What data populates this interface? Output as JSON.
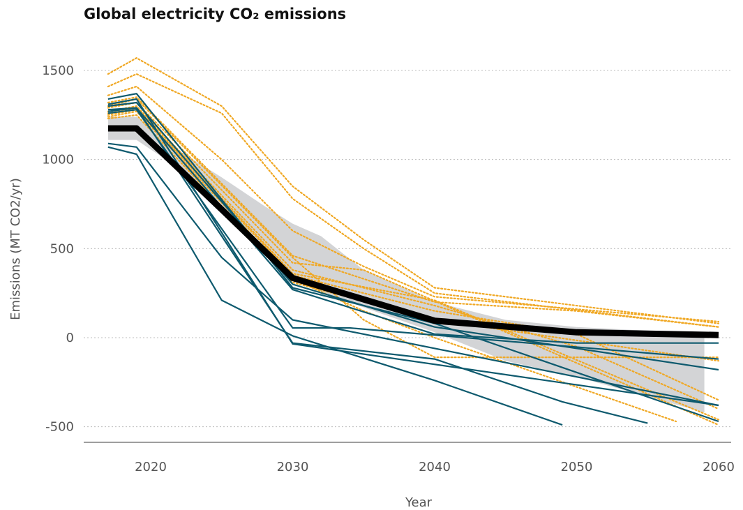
{
  "chart_data": {
    "type": "line",
    "title": "Global electricity CO₂ emissions",
    "xlabel": "Year",
    "ylabel": "Emissions (MT CO2/yr)",
    "xlim": [
      2014,
      2062
    ],
    "ylim": [
      -600,
      1600
    ],
    "xticks": [
      2020,
      2030,
      2040,
      2050,
      2060
    ],
    "yticks": [
      -500,
      0,
      500,
      1000,
      1500
    ],
    "ytick_labels": [
      "-500",
      "0",
      "500",
      "1000",
      "1500"
    ],
    "grid": "horizontal dotted",
    "colors": {
      "scenario_solid": "#0e5a6e",
      "scenario_dotted": "#f0a824",
      "median": "#000000",
      "range_band": "#d3d4d6"
    },
    "range_band": {
      "x": [
        2017,
        2019,
        2022,
        2025,
        2028,
        2030,
        2032,
        2035,
        2040,
        2045,
        2050,
        2055,
        2059
      ],
      "upper": [
        1240,
        1240,
        1050,
        900,
        740,
        640,
        570,
        380,
        200,
        100,
        60,
        40,
        20
      ],
      "lower": [
        1110,
        1110,
        950,
        740,
        520,
        330,
        260,
        170,
        30,
        -130,
        -220,
        -330,
        -420
      ]
    },
    "median": {
      "x": [
        2017,
        2019,
        2025,
        2030,
        2040,
        2050,
        2060
      ],
      "y": [
        1175,
        1175,
        720,
        335,
        95,
        30,
        15
      ]
    },
    "series_solid": [
      {
        "x": [
          2017,
          2019,
          2025,
          2030,
          2060
        ],
        "y": [
          1090,
          1070,
          450,
          100,
          -380
        ]
      },
      {
        "x": [
          2017,
          2019,
          2025,
          2030,
          2040,
          2049
        ],
        "y": [
          1070,
          1030,
          210,
          10,
          -240,
          -490
        ]
      },
      {
        "x": [
          2017,
          2019,
          2030,
          2040,
          2049,
          2055
        ],
        "y": [
          1280,
          1290,
          -30,
          -120,
          -360,
          -480
        ]
      },
      {
        "x": [
          2017,
          2019,
          2030,
          2060
        ],
        "y": [
          1310,
          1340,
          -35,
          -380
        ]
      },
      {
        "x": [
          2017,
          2019,
          2030,
          2040,
          2060
        ],
        "y": [
          1340,
          1370,
          280,
          80,
          -470
        ]
      },
      {
        "x": [
          2017,
          2019,
          2030,
          2040,
          2050,
          2060
        ],
        "y": [
          1270,
          1290,
          270,
          20,
          -30,
          -30
        ]
      },
      {
        "x": [
          2017,
          2019,
          2030,
          2040,
          2060
        ],
        "y": [
          1300,
          1320,
          300,
          60,
          -180
        ]
      },
      {
        "x": [
          2017,
          2019,
          2030,
          2034,
          2060
        ],
        "y": [
          1260,
          1280,
          55,
          55,
          -120
        ]
      }
    ],
    "series_dotted": [
      {
        "x": [
          2017,
          2019,
          2025,
          2030,
          2035,
          2040,
          2060
        ],
        "y": [
          1480,
          1570,
          1300,
          850,
          550,
          280,
          80
        ]
      },
      {
        "x": [
          2017,
          2019,
          2025,
          2030,
          2035,
          2040,
          2060
        ],
        "y": [
          1410,
          1480,
          1260,
          780,
          500,
          250,
          60
        ]
      },
      {
        "x": [
          2017,
          2019,
          2025,
          2030,
          2035,
          2040,
          2060
        ],
        "y": [
          1360,
          1410,
          1000,
          600,
          400,
          230,
          90
        ]
      },
      {
        "x": [
          2017,
          2019,
          2030,
          2040,
          2050,
          2060
        ],
        "y": [
          1320,
          1350,
          460,
          200,
          150,
          60
        ]
      },
      {
        "x": [
          2017,
          2019,
          2030,
          2035,
          2060
        ],
        "y": [
          1290,
          1320,
          420,
          380,
          -490
        ]
      },
      {
        "x": [
          2017,
          2019,
          2030,
          2040,
          2060
        ],
        "y": [
          1260,
          1290,
          360,
          210,
          -460
        ]
      },
      {
        "x": [
          2017,
          2019,
          2030,
          2035,
          2040,
          2057
        ],
        "y": [
          1240,
          1270,
          330,
          150,
          0,
          -470
        ]
      },
      {
        "x": [
          2017,
          2019,
          2030,
          2040,
          2060
        ],
        "y": [
          1230,
          1250,
          310,
          100,
          -130
        ]
      },
      {
        "x": [
          2017,
          2019,
          2030,
          2040,
          2050,
          2060
        ],
        "y": [
          1270,
          1300,
          380,
          180,
          -50,
          -400
        ]
      },
      {
        "x": [
          2017,
          2019,
          2030,
          2035,
          2040,
          2060
        ],
        "y": [
          1300,
          1340,
          450,
          100,
          -110,
          -110
        ]
      },
      {
        "x": [
          2017,
          2019,
          2030,
          2040,
          2050,
          2060
        ],
        "y": [
          1250,
          1280,
          350,
          150,
          20,
          -350
        ]
      }
    ]
  }
}
